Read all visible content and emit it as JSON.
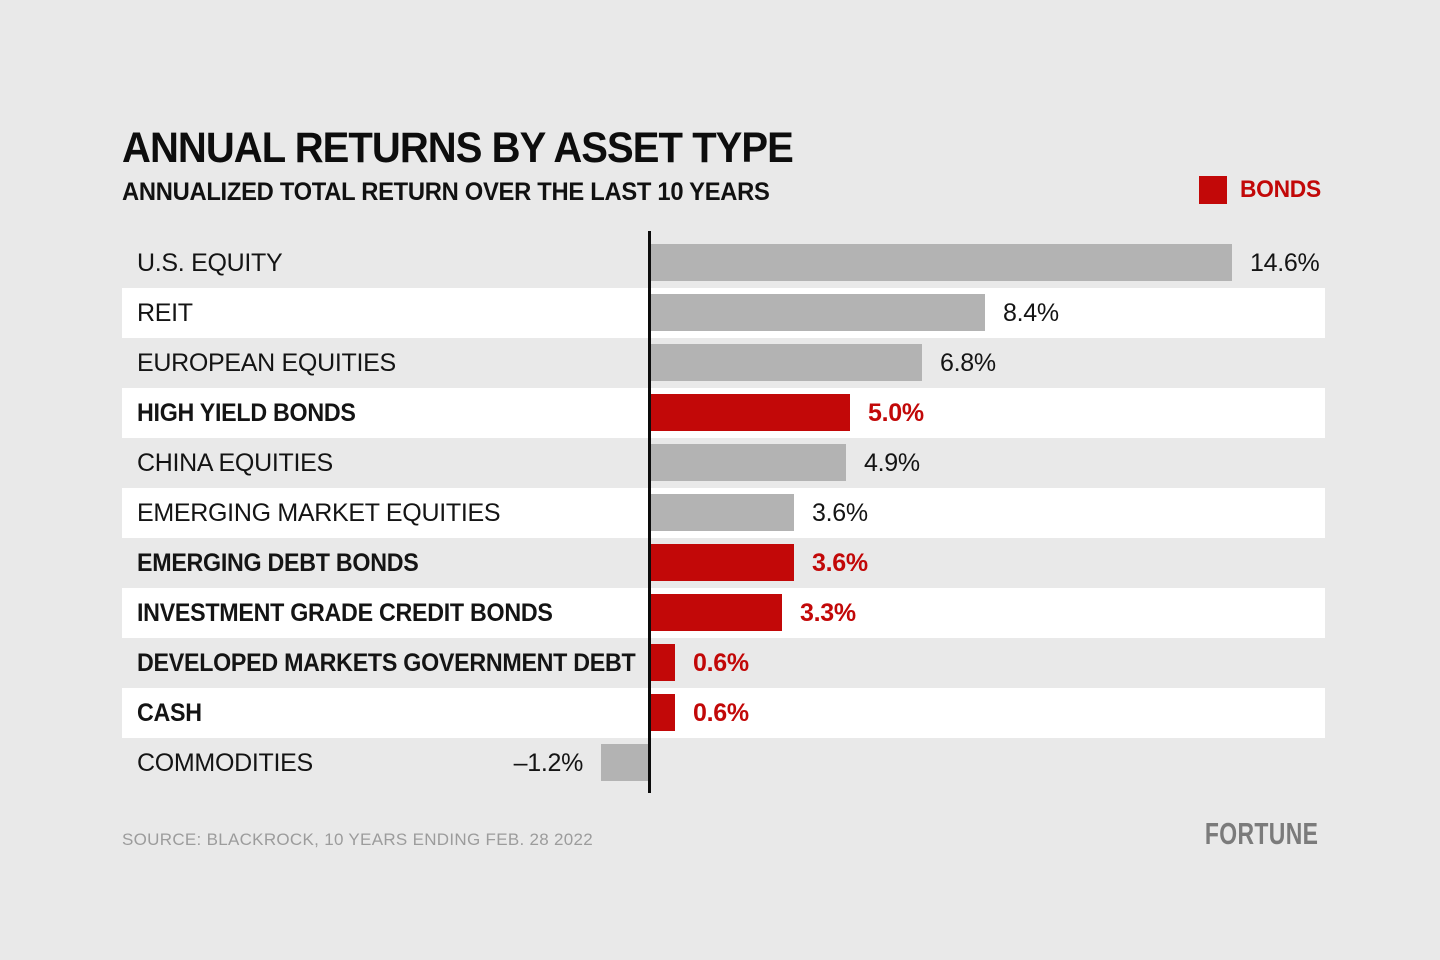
{
  "header": {
    "title": "ANNUAL RETURNS BY ASSET TYPE",
    "subtitle": "ANNUALIZED TOTAL RETURN OVER THE LAST 10 YEARS"
  },
  "legend": {
    "label": "BONDS",
    "swatch_color": "#c20808"
  },
  "colors": {
    "bond_red": "#c20808",
    "equity_gray": "#b3b3b3",
    "page_background": "#e9e9e9",
    "stripe_white": "#ffffff",
    "axis_black": "#0c0c0c",
    "text_black": "#141414",
    "source_gray": "#9c9c9c",
    "brand_gray": "#7b7b7b"
  },
  "chart_data": {
    "type": "bar",
    "orientation": "horizontal",
    "title": "ANNUAL RETURNS BY ASSET TYPE",
    "subtitle": "ANNUALIZED TOTAL RETURN OVER THE LAST 10 YEARS",
    "xlabel": "",
    "ylabel": "",
    "xlim": [
      -1.2,
      14.6
    ],
    "grid": false,
    "legend_position": "top-right",
    "legend_entries": [
      "BONDS"
    ],
    "categories": [
      "U.S. EQUITY",
      "REIT",
      "EUROPEAN EQUITIES",
      "HIGH YIELD BONDS",
      "CHINA EQUITIES",
      "EMERGING MARKET EQUITIES",
      "EMERGING DEBT BONDS",
      "INVESTMENT GRADE CREDIT BONDS",
      "DEVELOPED MARKETS GOVERNMENT DEBT",
      "CASH",
      "COMMODITIES"
    ],
    "values": [
      14.6,
      8.4,
      6.8,
      5.0,
      4.9,
      3.6,
      3.6,
      3.3,
      0.6,
      0.6,
      -1.2
    ],
    "rows": [
      {
        "label": "U.S. EQUITY",
        "value": 14.6,
        "display": "14.6%",
        "is_bond": false
      },
      {
        "label": "REIT",
        "value": 8.4,
        "display": "8.4%",
        "is_bond": false
      },
      {
        "label": "EUROPEAN EQUITIES",
        "value": 6.8,
        "display": "6.8%",
        "is_bond": false
      },
      {
        "label": "HIGH YIELD BONDS",
        "value": 5.0,
        "display": "5.0%",
        "is_bond": true
      },
      {
        "label": "CHINA EQUITIES",
        "value": 4.9,
        "display": "4.9%",
        "is_bond": false
      },
      {
        "label": "EMERGING MARKET EQUITIES",
        "value": 3.6,
        "display": "3.6%",
        "is_bond": false
      },
      {
        "label": "EMERGING DEBT BONDS",
        "value": 3.6,
        "display": "3.6%",
        "is_bond": true
      },
      {
        "label": "INVESTMENT GRADE CREDIT BONDS",
        "value": 3.3,
        "display": "3.3%",
        "is_bond": true
      },
      {
        "label": "DEVELOPED MARKETS GOVERNMENT DEBT",
        "value": 0.6,
        "display": "0.6%",
        "is_bond": true
      },
      {
        "label": "CASH",
        "value": 0.6,
        "display": "0.6%",
        "is_bond": true
      },
      {
        "label": "COMMODITIES",
        "value": -1.2,
        "display": "–1.2%",
        "is_bond": false
      }
    ]
  },
  "footer": {
    "source": "SOURCE: BLACKROCK, 10 YEARS ENDING FEB. 28 2022",
    "brand": "FORTUNE"
  }
}
